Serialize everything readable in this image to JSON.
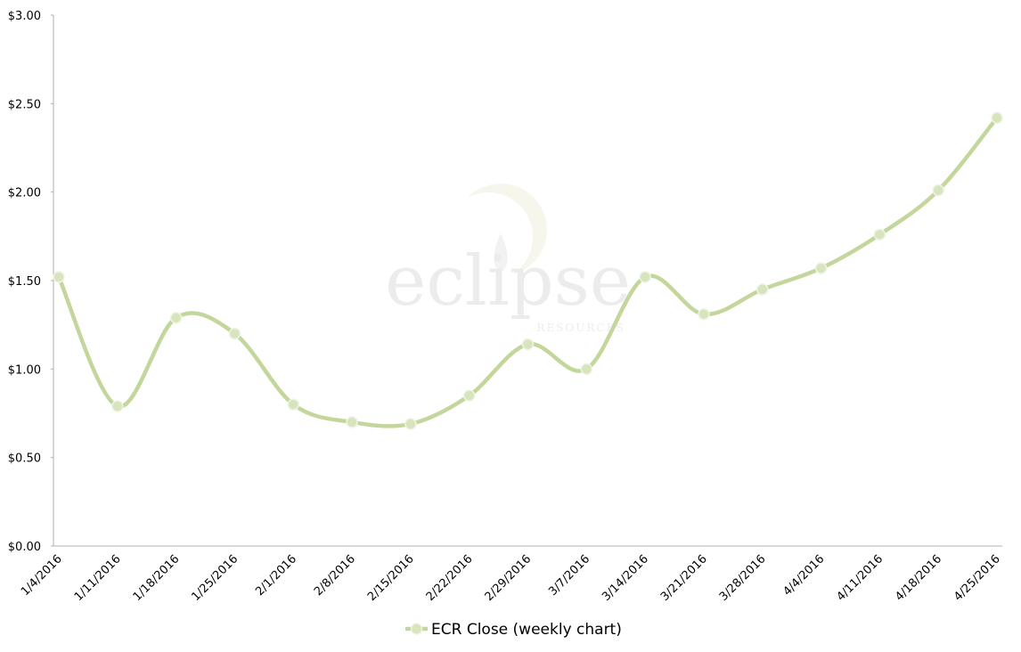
{
  "chart_data": {
    "type": "line",
    "categories": [
      "1/4/2016",
      "1/11/2016",
      "1/18/2016",
      "1/25/2016",
      "2/1/2016",
      "2/8/2016",
      "2/15/2016",
      "2/22/2016",
      "2/29/2016",
      "3/7/2016",
      "3/14/2016",
      "3/21/2016",
      "3/28/2016",
      "4/4/2016",
      "4/11/2016",
      "4/18/2016",
      "4/25/2016"
    ],
    "series": [
      {
        "name": "ECR Close (weekly chart)",
        "color": "#c3d69b",
        "marker_color": "#d7e4bd",
        "values": [
          1.52,
          0.79,
          1.29,
          1.2,
          0.8,
          0.7,
          0.69,
          0.85,
          1.14,
          1.0,
          1.52,
          1.31,
          1.45,
          1.57,
          1.76,
          2.01,
          2.42
        ]
      }
    ],
    "ylim": [
      0,
      3
    ],
    "yticks": [
      {
        "value": 0,
        "label": "$0.00"
      },
      {
        "value": 0.5,
        "label": "$0.50"
      },
      {
        "value": 1,
        "label": "$1.00"
      },
      {
        "value": 1.5,
        "label": "$1.50"
      },
      {
        "value": 2,
        "label": "$2.00"
      },
      {
        "value": 2.5,
        "label": "$2.50"
      },
      {
        "value": 3,
        "label": "$3.00"
      }
    ],
    "grid": false,
    "smooth": true,
    "legend": "bottom",
    "watermark": {
      "text": "eclipse",
      "subtext": "RESOURCES"
    }
  }
}
